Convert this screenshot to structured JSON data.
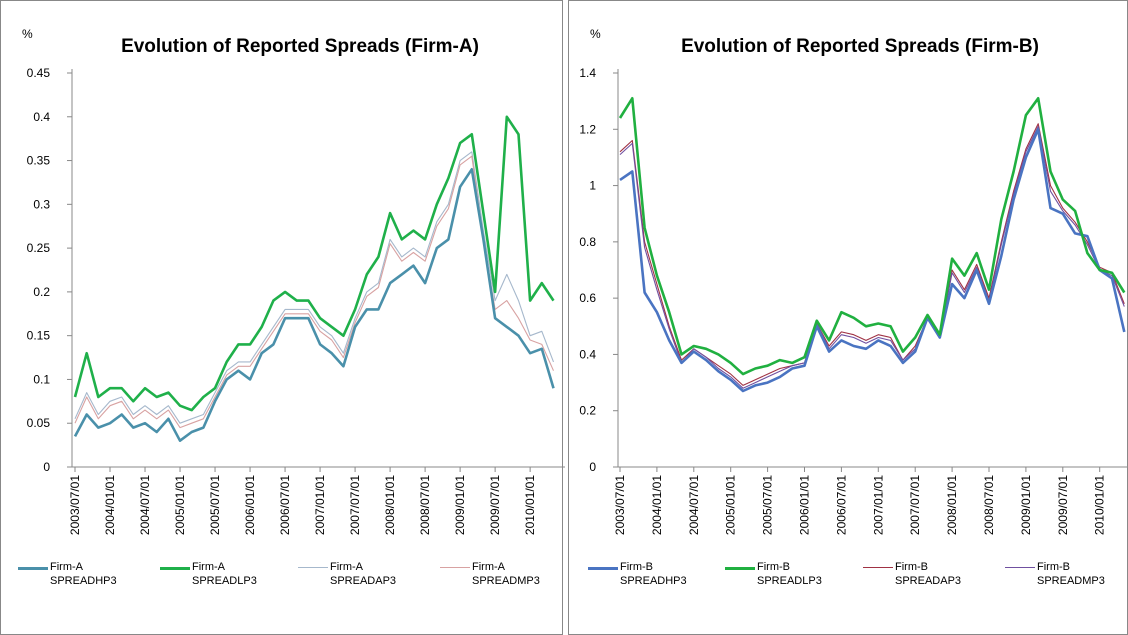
{
  "chart_data": [
    {
      "type": "line",
      "unit_label": "%",
      "title": "Evolution of Reported Spreads (Firm-A)",
      "categories": [
        "2003/07/01",
        null,
        null,
        "2004/01/01",
        null,
        null,
        "2004/07/01",
        null,
        null,
        "2005/01/01",
        null,
        null,
        "2005/07/01",
        null,
        null,
        "2006/01/01",
        null,
        null,
        "2006/07/01",
        null,
        null,
        "2007/01/01",
        null,
        null,
        "2007/07/01",
        null,
        null,
        "2008/01/01",
        null,
        null,
        "2008/07/01",
        null,
        null,
        "2009/01/01",
        null,
        null,
        "2009/07/01",
        null,
        null,
        "2010/01/01",
        null,
        null
      ],
      "ylim": [
        0,
        0.45
      ],
      "yticks": [
        0,
        0.05,
        0.1,
        0.15,
        0.2,
        0.25,
        0.3,
        0.35,
        0.4,
        0.45
      ],
      "series": [
        {
          "name": "Firm-A SPREADHP3",
          "color": "#4a90aa",
          "values": [
            0.035,
            0.06,
            0.045,
            0.05,
            0.06,
            0.045,
            0.05,
            0.04,
            0.055,
            0.03,
            0.04,
            0.045,
            0.075,
            0.1,
            0.11,
            0.1,
            0.13,
            0.14,
            0.17,
            0.17,
            0.17,
            0.14,
            0.13,
            0.115,
            0.16,
            0.18,
            0.18,
            0.21,
            0.22,
            0.23,
            0.21,
            0.25,
            0.26,
            0.32,
            0.34,
            0.26,
            0.17,
            0.16,
            0.15,
            0.13,
            0.135,
            0.09
          ]
        },
        {
          "name": "Firm-A SPREADLP3",
          "color": "#1fb04a",
          "values": [
            0.08,
            0.13,
            0.08,
            0.09,
            0.09,
            0.075,
            0.09,
            0.08,
            0.085,
            0.07,
            0.065,
            0.08,
            0.09,
            0.12,
            0.14,
            0.14,
            0.16,
            0.19,
            0.2,
            0.19,
            0.19,
            0.17,
            0.16,
            0.15,
            0.18,
            0.22,
            0.24,
            0.29,
            0.26,
            0.27,
            0.26,
            0.3,
            0.33,
            0.37,
            0.38,
            0.29,
            0.2,
            0.4,
            0.38,
            0.19,
            0.21,
            0.19
          ]
        },
        {
          "name": "Firm-A SPREADAP3",
          "color": "#a6b8cc",
          "values": [
            0.055,
            0.085,
            0.06,
            0.075,
            0.08,
            0.06,
            0.07,
            0.06,
            0.07,
            0.05,
            0.055,
            0.06,
            0.085,
            0.11,
            0.12,
            0.12,
            0.14,
            0.16,
            0.18,
            0.18,
            0.18,
            0.16,
            0.15,
            0.13,
            0.17,
            0.2,
            0.21,
            0.26,
            0.24,
            0.25,
            0.24,
            0.28,
            0.3,
            0.35,
            0.36,
            0.27,
            0.19,
            0.22,
            0.19,
            0.15,
            0.155,
            0.12
          ]
        },
        {
          "name": "Firm-A SPREADMP3",
          "color": "#d8a2a2",
          "values": [
            0.05,
            0.08,
            0.055,
            0.07,
            0.075,
            0.055,
            0.065,
            0.055,
            0.065,
            0.045,
            0.05,
            0.055,
            0.08,
            0.105,
            0.115,
            0.115,
            0.135,
            0.155,
            0.175,
            0.175,
            0.175,
            0.155,
            0.145,
            0.125,
            0.165,
            0.195,
            0.205,
            0.255,
            0.235,
            0.245,
            0.235,
            0.275,
            0.295,
            0.345,
            0.355,
            0.26,
            0.18,
            0.19,
            0.17,
            0.145,
            0.14,
            0.11
          ]
        }
      ]
    },
    {
      "type": "line",
      "unit_label": "%",
      "title": "Evolution of Reported Spreads (Firm-B)",
      "categories": [
        "2003/07/01",
        null,
        null,
        "2004/01/01",
        null,
        null,
        "2004/07/01",
        null,
        null,
        "2005/01/01",
        null,
        null,
        "2005/07/01",
        null,
        null,
        "2006/01/01",
        null,
        null,
        "2006/07/01",
        null,
        null,
        "2007/01/01",
        null,
        null,
        "2007/07/01",
        null,
        null,
        "2008/01/01",
        null,
        null,
        "2008/07/01",
        null,
        null,
        "2009/01/01",
        null,
        null,
        "2009/07/01",
        null,
        null,
        "2010/01/01",
        null,
        null
      ],
      "ylim": [
        0,
        1.4
      ],
      "yticks": [
        0,
        0.2,
        0.4,
        0.6,
        0.8,
        1,
        1.2,
        1.4
      ],
      "series": [
        {
          "name": "Firm-B SPREADHP3",
          "color": "#4a74c2",
          "values": [
            1.02,
            1.05,
            0.62,
            0.55,
            0.45,
            0.37,
            0.41,
            0.38,
            0.34,
            0.31,
            0.27,
            0.29,
            0.3,
            0.32,
            0.35,
            0.36,
            0.5,
            0.41,
            0.45,
            0.43,
            0.42,
            0.45,
            0.43,
            0.37,
            0.41,
            0.53,
            0.46,
            0.65,
            0.6,
            0.7,
            0.58,
            0.75,
            0.95,
            1.1,
            1.2,
            0.92,
            0.9,
            0.83,
            0.82,
            0.7,
            0.67,
            0.48
          ]
        },
        {
          "name": "Firm-B SPREADLP3",
          "color": "#20b040",
          "values": [
            1.24,
            1.31,
            0.85,
            0.68,
            0.55,
            0.4,
            0.43,
            0.42,
            0.4,
            0.37,
            0.33,
            0.35,
            0.36,
            0.38,
            0.37,
            0.39,
            0.52,
            0.45,
            0.55,
            0.53,
            0.5,
            0.51,
            0.5,
            0.41,
            0.46,
            0.54,
            0.47,
            0.74,
            0.68,
            0.76,
            0.63,
            0.88,
            1.05,
            1.25,
            1.31,
            1.05,
            0.95,
            0.91,
            0.76,
            0.7,
            0.69,
            0.62
          ]
        },
        {
          "name": "Firm-B SPREADAP3",
          "color": "#a03244",
          "values": [
            1.12,
            1.16,
            0.8,
            0.65,
            0.5,
            0.38,
            0.42,
            0.39,
            0.36,
            0.33,
            0.29,
            0.31,
            0.33,
            0.35,
            0.36,
            0.37,
            0.51,
            0.43,
            0.48,
            0.47,
            0.45,
            0.47,
            0.46,
            0.38,
            0.43,
            0.53,
            0.46,
            0.7,
            0.63,
            0.72,
            0.6,
            0.8,
            0.98,
            1.13,
            1.22,
            1,
            0.92,
            0.87,
            0.8,
            0.71,
            0.69,
            0.58
          ]
        },
        {
          "name": "Firm-B SPREADMP3",
          "color": "#7050a0",
          "values": [
            1.11,
            1.15,
            0.78,
            0.63,
            0.49,
            0.37,
            0.42,
            0.39,
            0.35,
            0.32,
            0.28,
            0.3,
            0.32,
            0.34,
            0.36,
            0.37,
            0.51,
            0.42,
            0.47,
            0.46,
            0.44,
            0.46,
            0.45,
            0.38,
            0.42,
            0.53,
            0.46,
            0.69,
            0.62,
            0.71,
            0.59,
            0.79,
            0.97,
            1.12,
            1.21,
            0.98,
            0.91,
            0.86,
            0.79,
            0.7,
            0.68,
            0.57
          ]
        }
      ]
    }
  ]
}
